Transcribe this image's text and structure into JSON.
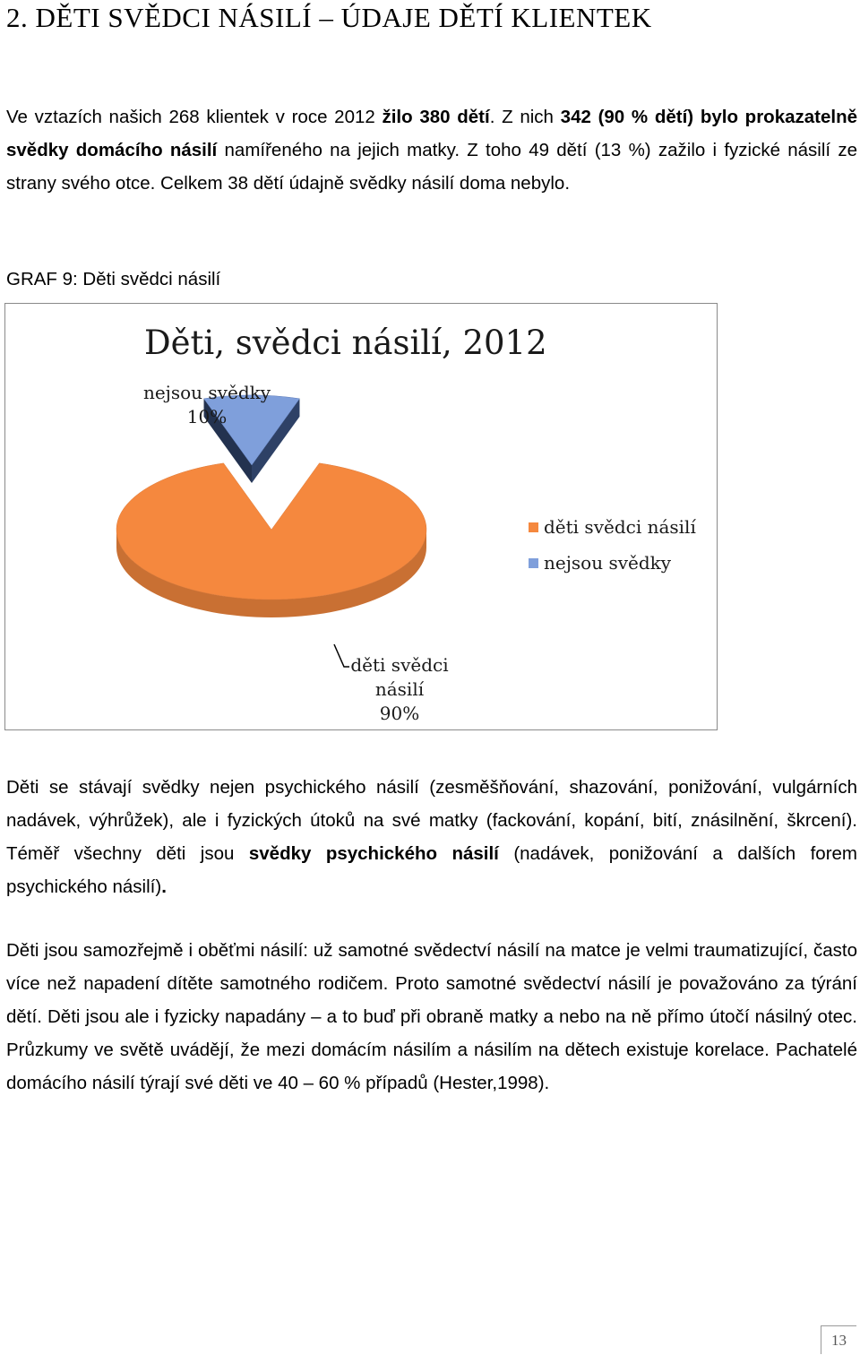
{
  "heading": "2. DĚTI SVĚDCI NÁSILÍ – ÚDAJE DĚTÍ KLIENTEK",
  "intro": {
    "p1": "Ve vztazích našich 268 klientek v roce 2012 ",
    "b1": "žilo 380 dětí",
    "p2": ". Z nich ",
    "b2": "342 (90 % dětí) bylo prokazatelně svědky domácího násilí",
    "p3": " namířeného na jejich matky. Z toho 49 dětí (13 %) zažilo i fyzické násilí ze strany svého otce. Celkem 38 dětí údajně svědky násilí doma nebylo."
  },
  "graf_label": "GRAF 9: Děti svědci násilí",
  "chart_data": {
    "type": "pie",
    "title": "Děti, svědci násilí, 2012",
    "categories": [
      "děti svědci násilí",
      "nejsou svědky"
    ],
    "values": [
      90,
      10
    ],
    "colors": [
      "#f5883e",
      "#7f9fdb"
    ],
    "data_labels": [
      {
        "name_lines": [
          "děti svědci",
          "násilí"
        ],
        "value": "90%"
      },
      {
        "name_lines": [
          "nejsou svědky"
        ],
        "value": "10%"
      }
    ],
    "legend": [
      "děti svědci násilí",
      "nejsou svědky"
    ],
    "legend_placement": "right",
    "style": "3d"
  },
  "para2": {
    "p1": "Děti se stávají svědky nejen psychického násilí (zesměšňování, shazování, ponižování, vulgárních nadávek, výhrůžek), ale i fyzických útoků na své matky (fackování, kopání, bití, znásilnění, škrcení). Téměř všechny děti jsou ",
    "b1": "svědky psychického násilí",
    "p2": " (nadávek, ponižování a dalších forem psychického násilí)",
    "b2": "."
  },
  "para3": "Děti jsou samozřejmě i oběťmi násilí: už samotné svědectví násilí na matce je velmi traumatizující, často více než napadení dítěte samotného rodičem. Proto samotné svědectví násilí je považováno za týrání dětí. Děti jsou ale i fyzicky napadány – a to buď při obraně matky a nebo na ně přímo útočí násilný otec. Průzkumy ve světě uvádějí, že mezi domácím násilím a násilím na dětech existuje korelace. Pachatelé domácího násilí týrají své děti ve 40 – 60 % případů (Hester,1998).",
  "page_number": "13"
}
